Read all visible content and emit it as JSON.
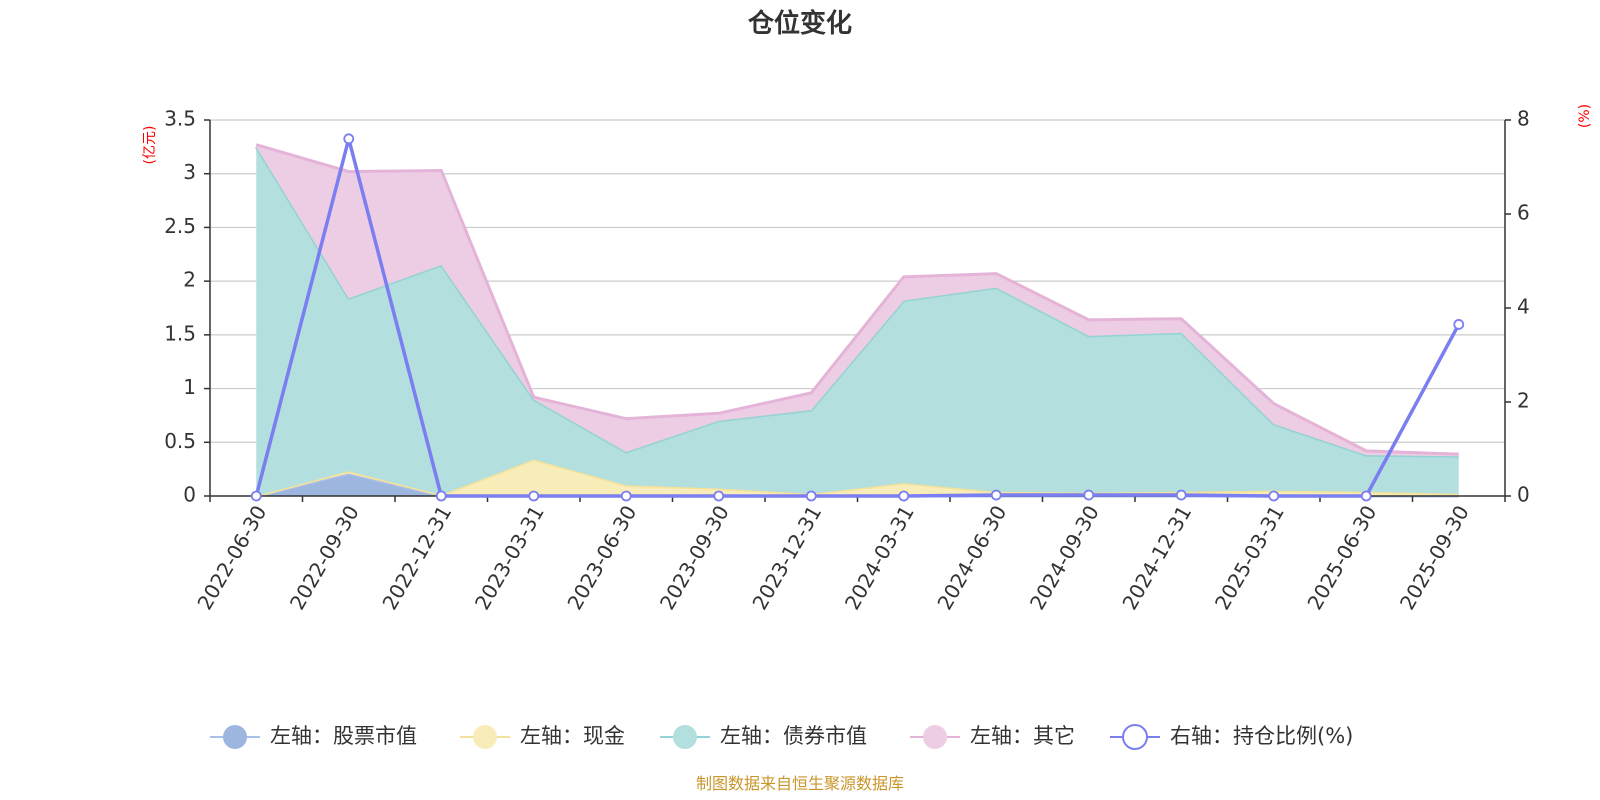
{
  "title": "仓位变化",
  "source": "制图数据来自恒生聚源数据库",
  "chart_data": {
    "type": "area",
    "categories": [
      "2022-06-30",
      "2022-09-30",
      "2022-12-31",
      "2023-03-31",
      "2023-06-30",
      "2023-09-30",
      "2023-12-31",
      "2024-03-31",
      "2024-06-30",
      "2024-09-30",
      "2024-12-31",
      "2025-03-31",
      "2025-06-30",
      "2025-09-30"
    ],
    "left_axis": {
      "unit": "(亿元)",
      "ylim": [
        0,
        3.5
      ],
      "ticks": [
        "0",
        "0.5",
        "1",
        "1.5",
        "2",
        "2.5",
        "3",
        "3.5"
      ]
    },
    "right_axis": {
      "unit": "(%)",
      "ylim": [
        0,
        8
      ],
      "ticks": [
        "0",
        "2",
        "4",
        "6",
        "8"
      ]
    },
    "stacked": true,
    "grid": true,
    "legend_position": "bottom",
    "series": [
      {
        "name": "左轴：股票市值",
        "axis": "left",
        "color": "#9db6e0",
        "line_color": "#a9c0e8",
        "values": [
          0,
          0.21,
          0,
          0,
          0,
          0,
          0,
          0,
          0,
          0,
          0,
          0,
          0,
          0
        ]
      },
      {
        "name": "左轴：现金",
        "axis": "left",
        "color": "#f8ecb8",
        "line_color": "#f5e29a",
        "values": [
          0,
          0.02,
          0.01,
          0.34,
          0.1,
          0.07,
          0.02,
          0.12,
          0.04,
          0.03,
          0.04,
          0.05,
          0.04,
          0.02
        ]
      },
      {
        "name": "左轴：债券市值",
        "axis": "left",
        "color": "#b3dfdf",
        "line_color": "#93d3d3",
        "values": [
          3.25,
          1.61,
          2.14,
          0.56,
          0.31,
          0.63,
          0.78,
          1.7,
          1.9,
          1.46,
          1.48,
          0.62,
          0.34,
          0.35
        ]
      },
      {
        "name": "左轴：其它",
        "axis": "left",
        "color": "#edcde4",
        "line_color": "#e4b4d8",
        "values": [
          0.02,
          1.18,
          0.88,
          0.02,
          0.31,
          0.07,
          0.16,
          0.22,
          0.13,
          0.15,
          0.13,
          0.19,
          0.04,
          0.02
        ]
      },
      {
        "name": "右轴：持仓比例(%)",
        "axis": "right",
        "type": "line",
        "color": "#7b7ef0",
        "values": [
          0,
          7.6,
          0,
          0,
          0,
          0,
          0,
          0,
          0.02,
          0.02,
          0.02,
          0,
          0,
          3.65
        ]
      }
    ]
  }
}
